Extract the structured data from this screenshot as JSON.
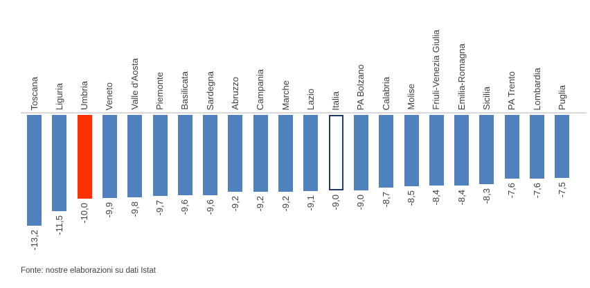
{
  "chart_data": {
    "type": "bar",
    "title": "",
    "xlabel": "",
    "ylabel": "",
    "ylim": [
      -14,
      0
    ],
    "grid": false,
    "legend": false,
    "orientation": "vertical-downward",
    "decimal_format": "italian-comma",
    "categories": [
      "Toscana",
      "Liguria",
      "Umbria",
      "Veneto",
      "Valle d'Aosta",
      "Piemonte",
      "Basilicata",
      "Sardegna",
      "Abruzzo",
      "Campania",
      "Marche",
      "Lazio",
      "Italia",
      "PA Bolzano",
      "Calabria",
      "Molise",
      "Friuli-Venezia Giulia",
      "Emilia-Romagna",
      "Sicilia",
      "PA Trento",
      "Lombardia",
      "Puglia"
    ],
    "values": [
      -13.2,
      -11.5,
      -10.0,
      -9.9,
      -9.8,
      -9.7,
      -9.6,
      -9.6,
      -9.2,
      -9.2,
      -9.2,
      -9.1,
      -9.0,
      -9.0,
      -8.7,
      -8.5,
      -8.4,
      -8.4,
      -8.3,
      -7.6,
      -7.6,
      -7.5
    ],
    "value_labels": [
      "-13,2",
      "-11,5",
      "-10,0",
      "-9,9",
      "-9,8",
      "-9,7",
      "-9,6",
      "-9,6",
      "-9,2",
      "-9,2",
      "-9,2",
      "-9,1",
      "-9,0",
      "-9,0",
      "-8,7",
      "-8,5",
      "-8,4",
      "-8,4",
      "-8,3",
      "-7,6",
      "-7,6",
      "-7,5"
    ],
    "bar_styles": [
      "default",
      "default",
      "highlight",
      "default",
      "default",
      "default",
      "default",
      "default",
      "default",
      "default",
      "default",
      "default",
      "outline",
      "default",
      "default",
      "default",
      "default",
      "default",
      "default",
      "default",
      "default",
      "default"
    ],
    "highlighted_category": "Umbria",
    "outlined_category": "Italia",
    "label_rotation": "90deg-ccw-bottom-to-top",
    "colors": {
      "bar_default": "#4F81BD",
      "bar_highlight": "#FB3200",
      "bar_outline_fill": "#FFFFFF",
      "bar_outline_border": "#1F3864",
      "axis_line": "#D9D9D9",
      "text": "#404040"
    }
  },
  "footer": {
    "source": "Fonte: nostre elaborazioni su dati Istat"
  }
}
